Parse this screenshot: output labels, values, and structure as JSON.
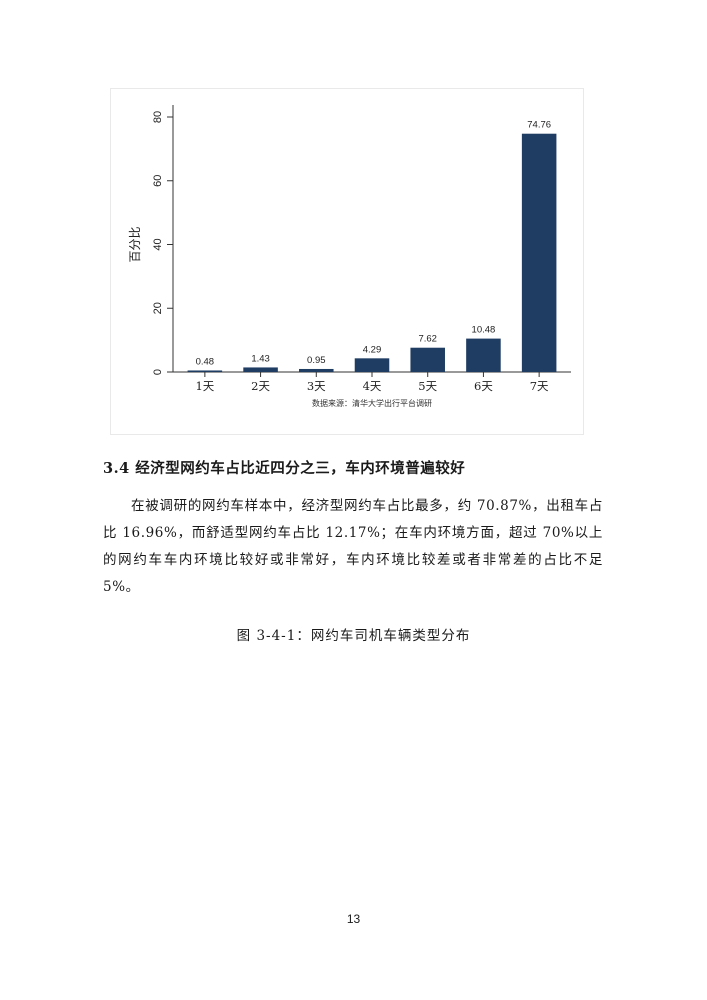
{
  "chart_data": {
    "type": "bar",
    "categories": [
      "1天",
      "2天",
      "3天",
      "4天",
      "5天",
      "6天",
      "7天"
    ],
    "values": [
      0.48,
      1.43,
      0.95,
      4.29,
      7.62,
      10.48,
      74.76
    ],
    "data_labels": [
      "0.48",
      "1.43",
      "0.95",
      "4.29",
      "7.62",
      "10.48",
      "74.76"
    ],
    "ylabel": "百分比",
    "xlabel": "",
    "ylim": [
      0,
      80
    ],
    "yticks": [
      0,
      20,
      40,
      60,
      80
    ],
    "source_note": "数据来源：清华大学出行平台调研",
    "bar_color": "#1f3d63",
    "grid": false
  },
  "section": {
    "heading": "3.4 经济型网约车占比近四分之三，车内环境普遍较好",
    "paragraph": "在被调研的网约车样本中，经济型网约车占比最多，约 70.87%，出租车占比 16.96%，而舒适型网约车占比 12.17%；在车内环境方面，超过 70%以上的网约车车内环境比较好或非常好，车内环境比较差或者非常差的占比不足 5%。"
  },
  "figure": {
    "caption": "图 3-4-1：网约车司机车辆类型分布"
  },
  "page": {
    "number": "13"
  }
}
